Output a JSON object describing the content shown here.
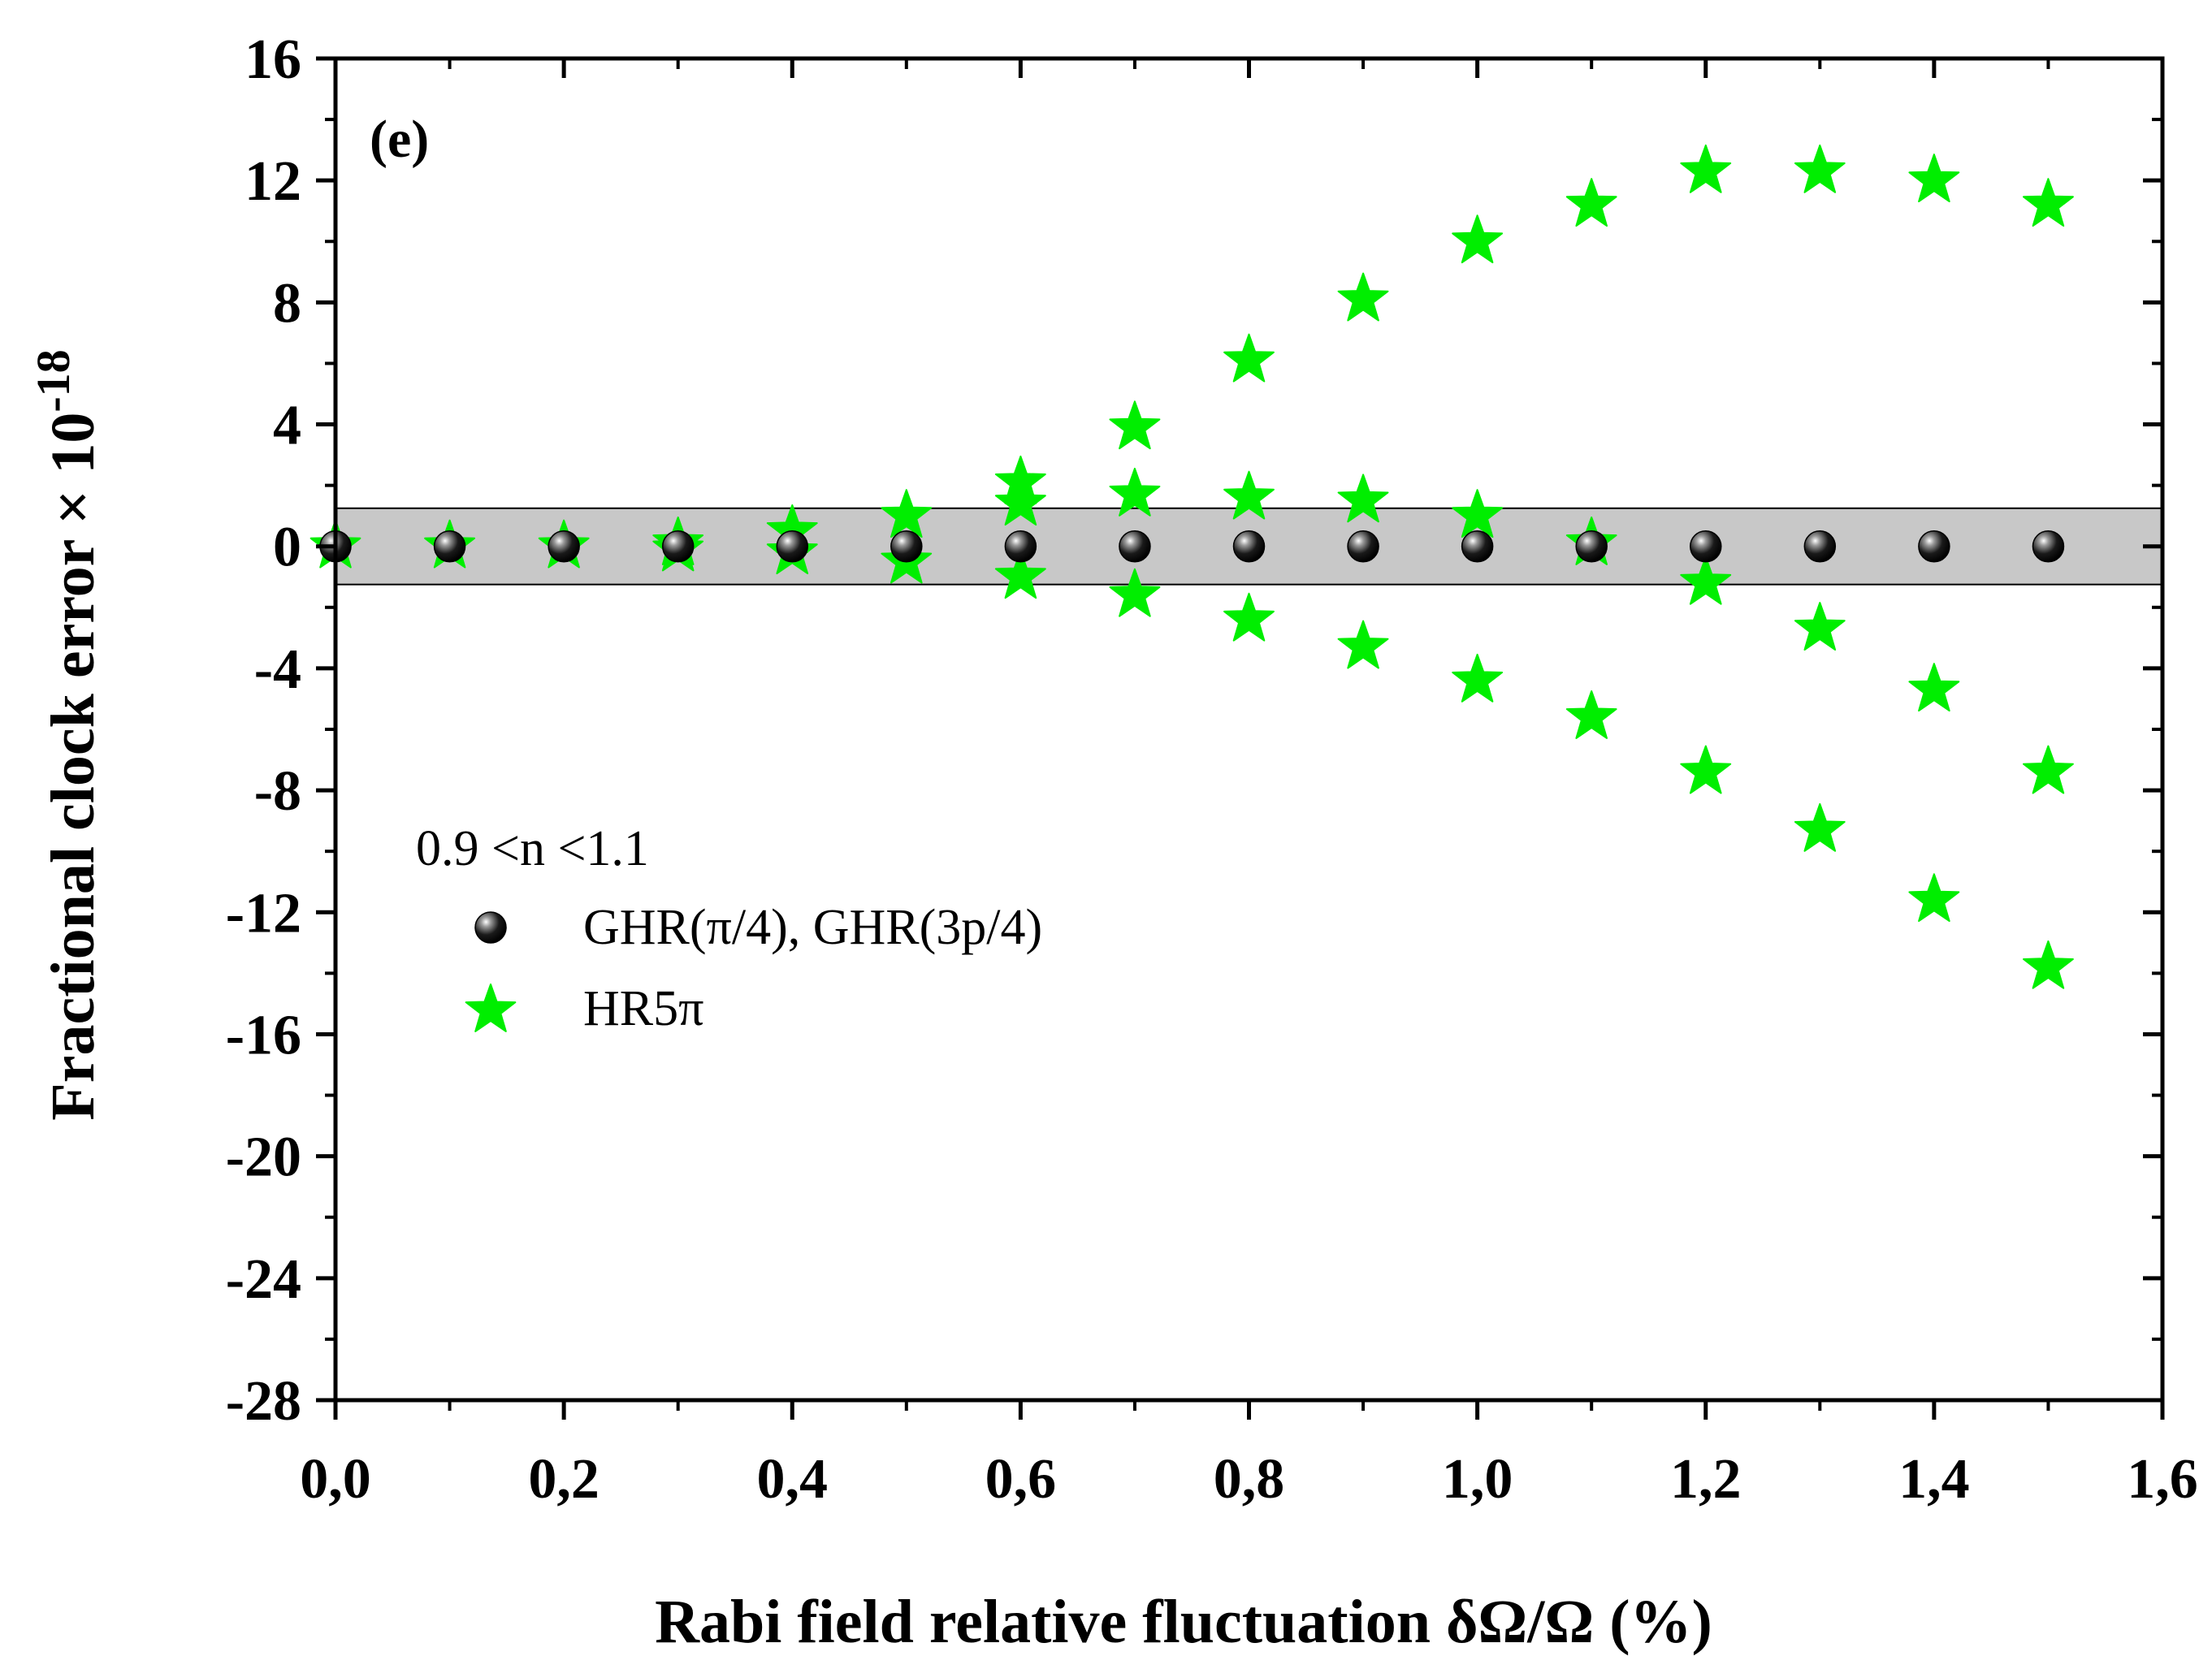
{
  "chart_data": {
    "type": "scatter",
    "panel_label": "(e)",
    "title": "",
    "xlabel": "Rabi field relative fluctuation δΩ/Ω (%)",
    "ylabel_main": "Fractional clock error × 10",
    "ylabel_exponent": "-18",
    "xlim": [
      0.0,
      1.6
    ],
    "ylim": [
      -28,
      16
    ],
    "x_ticks": [
      0.0,
      0.2,
      0.4,
      0.6,
      0.8,
      1.0,
      1.2,
      1.4,
      1.6
    ],
    "x_tick_labels": [
      "0,0",
      "0,2",
      "0,4",
      "0,6",
      "0,8",
      "1,0",
      "1,2",
      "1,4",
      "1,6"
    ],
    "y_ticks": [
      16,
      12,
      8,
      4,
      0,
      -4,
      -8,
      -12,
      -16,
      -20,
      -24,
      -28
    ],
    "y_tick_labels": [
      "16",
      "12",
      "8",
      "4",
      "0",
      "-4",
      "-8",
      "-12",
      "-16",
      "-20",
      "-24",
      "-28"
    ],
    "shaded_band": {
      "ymin": -1.25,
      "ymax": 1.25,
      "color": "#c8c8c8"
    },
    "legend": {
      "title": "0.9 <n <1.1",
      "placement": "center-left"
    },
    "series": [
      {
        "name": "GHR(π/4), GHR(3p/4)",
        "marker": "sphere",
        "color": "#000000",
        "points": [
          [
            0.0,
            0.0
          ],
          [
            0.1,
            0.0
          ],
          [
            0.2,
            0.0
          ],
          [
            0.3,
            0.0
          ],
          [
            0.4,
            0.0
          ],
          [
            0.5,
            0.0
          ],
          [
            0.6,
            0.0
          ],
          [
            0.7,
            0.0
          ],
          [
            0.8,
            0.0
          ],
          [
            0.9,
            0.0
          ],
          [
            1.0,
            0.0
          ],
          [
            1.1,
            0.0
          ],
          [
            1.2,
            0.0
          ],
          [
            1.3,
            0.0
          ],
          [
            1.4,
            0.0
          ],
          [
            1.5,
            0.0
          ]
        ]
      },
      {
        "name": "HR5π",
        "marker": "star",
        "color": "#00ee00",
        "points": [
          [
            0.0,
            0.0
          ],
          [
            0.1,
            0.0
          ],
          [
            0.2,
            0.0
          ],
          [
            0.3,
            0.1
          ],
          [
            0.3,
            -0.1
          ],
          [
            0.4,
            0.5
          ],
          [
            0.4,
            -0.2
          ],
          [
            0.5,
            1.0
          ],
          [
            0.5,
            -0.5
          ],
          [
            0.6,
            2.1
          ],
          [
            0.6,
            1.4
          ],
          [
            0.6,
            -1.0
          ],
          [
            0.7,
            3.9
          ],
          [
            0.7,
            1.7
          ],
          [
            0.7,
            -1.6
          ],
          [
            0.8,
            6.1
          ],
          [
            0.8,
            1.6
          ],
          [
            0.8,
            -2.4
          ],
          [
            0.9,
            8.1
          ],
          [
            0.9,
            1.5
          ],
          [
            0.9,
            -3.3
          ],
          [
            1.0,
            10.0
          ],
          [
            1.0,
            1.0
          ],
          [
            1.0,
            -4.4
          ],
          [
            1.1,
            11.2
          ],
          [
            1.1,
            0.1
          ],
          [
            1.1,
            -5.6
          ],
          [
            1.2,
            12.3
          ],
          [
            1.2,
            -1.2
          ],
          [
            1.2,
            -7.4
          ],
          [
            1.3,
            12.3
          ],
          [
            1.3,
            -2.7
          ],
          [
            1.3,
            -9.3
          ],
          [
            1.4,
            12.0
          ],
          [
            1.4,
            -4.7
          ],
          [
            1.4,
            -11.6
          ],
          [
            1.5,
            11.2
          ],
          [
            1.5,
            -7.4
          ],
          [
            1.5,
            -13.8
          ]
        ]
      }
    ]
  }
}
